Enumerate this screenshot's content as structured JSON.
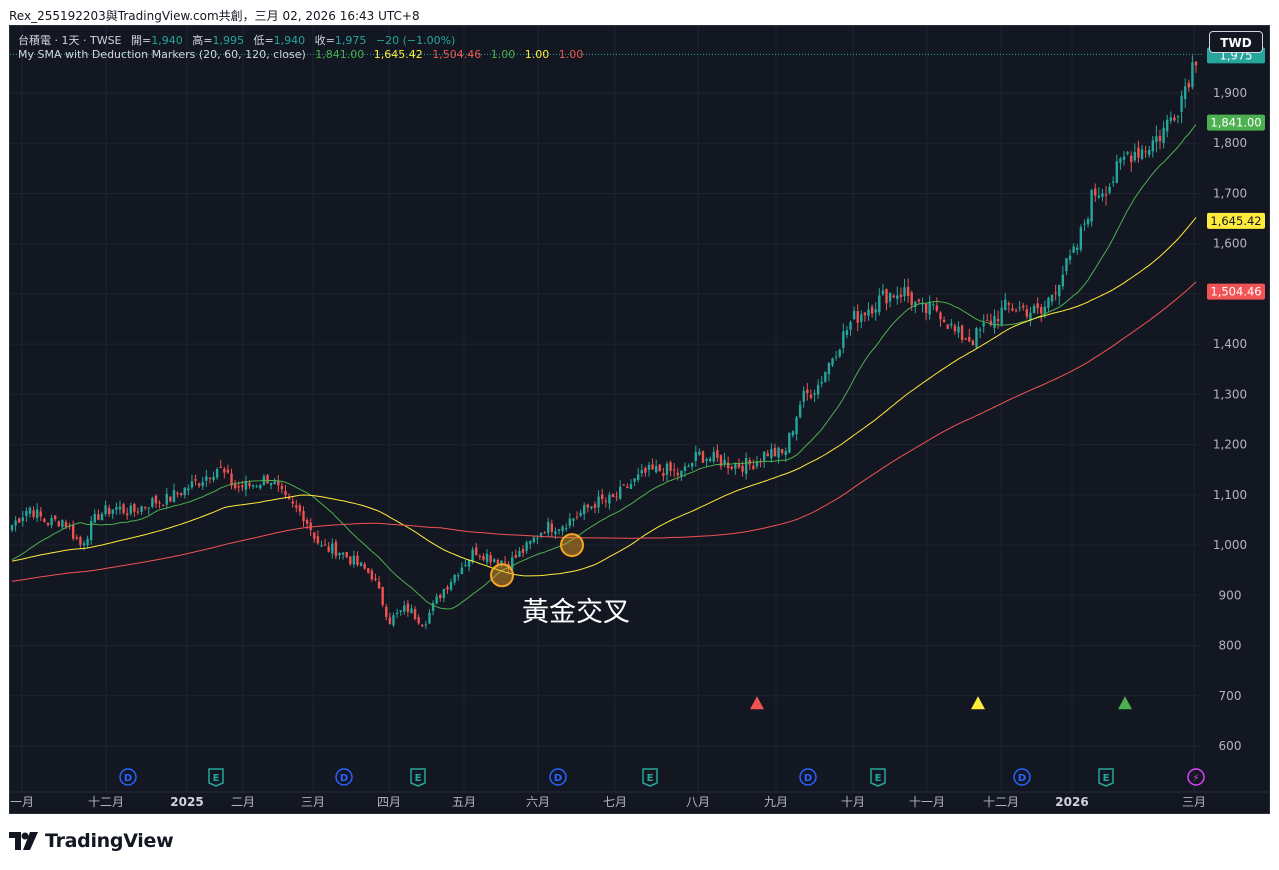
{
  "header": {
    "title": "Rex_255192203與TradingView.com共創，三月 02, 2026 16:43 UTC+8"
  },
  "legend": {
    "line1": {
      "symbol": "台積電 · 1天 · TWSE",
      "o_label": "開",
      "o": "1,940",
      "h_label": "高",
      "h": "1,995",
      "l_label": "低",
      "l": "1,940",
      "c_label": "收",
      "c": "1,975",
      "chg": "−20 (−1.00%)"
    },
    "line2": {
      "name": "My SMA with Deduction Markers (20, 60, 120, close)",
      "v1": "1,841.00",
      "v2": "1,645.42",
      "v3": "1,504.46",
      "v4": "1.00",
      "v5": "1.00",
      "v6": "1.00"
    }
  },
  "currency_button": "TWD",
  "price_labels": {
    "last": "1,975",
    "sma20": "1,841.00",
    "sma60": "1,645.42",
    "sma120": "1,504.46"
  },
  "annotation": "黃金交叉",
  "brand": "TradingView",
  "colors": {
    "bg": "#131722",
    "grid": "#1f2330",
    "up": "#26a69a",
    "down": "#ef5350",
    "sma20": "#4caf50",
    "sma60": "#ffeb3b",
    "sma120": "#f05454",
    "orange": "#f5a623"
  },
  "chart_data": {
    "type": "candlestick",
    "symbol": "台積電",
    "interval": "1天",
    "exchange": "TWSE",
    "y_ticks": [
      600,
      700,
      800,
      900,
      1000,
      1100,
      1200,
      1300,
      1400,
      1500,
      1600,
      1700,
      1800,
      1900
    ],
    "y_tick_labels": [
      "600",
      "700",
      "800",
      "900",
      "1,000",
      "1,100",
      "1,200",
      "1,300",
      "1,400",
      "1,500",
      "1,600",
      "1,700",
      "1,800",
      "1,900"
    ],
    "ylim": [
      570,
      2030
    ],
    "x_ticks": [
      "一月",
      "十二月",
      "2025",
      "二月",
      "三月",
      "四月",
      "五月",
      "六月",
      "七月",
      "八月",
      "九月",
      "十月",
      "十一月",
      "十二月",
      "2026",
      "三月"
    ],
    "close_series": [
      {
        "d": "2024-11-01",
        "c": 1040
      },
      {
        "d": "2024-11-08",
        "c": 1075
      },
      {
        "d": "2024-11-15",
        "c": 1045
      },
      {
        "d": "2024-11-22",
        "c": 1050
      },
      {
        "d": "2024-11-29",
        "c": 1000
      },
      {
        "d": "2024-12-06",
        "c": 1060
      },
      {
        "d": "2024-12-13",
        "c": 1075
      },
      {
        "d": "2024-12-20",
        "c": 1065
      },
      {
        "d": "2024-12-27",
        "c": 1085
      },
      {
        "d": "2025-01-03",
        "c": 1090
      },
      {
        "d": "2025-01-10",
        "c": 1110
      },
      {
        "d": "2025-01-17",
        "c": 1130
      },
      {
        "d": "2025-01-24",
        "c": 1155
      },
      {
        "d": "2025-02-03",
        "c": 1115
      },
      {
        "d": "2025-02-10",
        "c": 1120
      },
      {
        "d": "2025-02-17",
        "c": 1135
      },
      {
        "d": "2025-02-24",
        "c": 1085
      },
      {
        "d": "2025-03-03",
        "c": 1060
      },
      {
        "d": "2025-03-10",
        "c": 995
      },
      {
        "d": "2025-03-17",
        "c": 990
      },
      {
        "d": "2025-03-24",
        "c": 965
      },
      {
        "d": "2025-03-31",
        "c": 940
      },
      {
        "d": "2025-04-07",
        "c": 850
      },
      {
        "d": "2025-04-14",
        "c": 875
      },
      {
        "d": "2025-04-21",
        "c": 845
      },
      {
        "d": "2025-04-28",
        "c": 905
      },
      {
        "d": "2025-05-05",
        "c": 950
      },
      {
        "d": "2025-05-12",
        "c": 990
      },
      {
        "d": "2025-05-19",
        "c": 975
      },
      {
        "d": "2025-05-26",
        "c": 965
      },
      {
        "d": "2025-06-02",
        "c": 995
      },
      {
        "d": "2025-06-09",
        "c": 1035
      },
      {
        "d": "2025-06-16",
        "c": 1040
      },
      {
        "d": "2025-06-23",
        "c": 1060
      },
      {
        "d": "2025-06-30",
        "c": 1085
      },
      {
        "d": "2025-07-07",
        "c": 1090
      },
      {
        "d": "2025-07-14",
        "c": 1120
      },
      {
        "d": "2025-07-21",
        "c": 1145
      },
      {
        "d": "2025-07-28",
        "c": 1150
      },
      {
        "d": "2025-08-04",
        "c": 1140
      },
      {
        "d": "2025-08-11",
        "c": 1180
      },
      {
        "d": "2025-08-18",
        "c": 1170
      },
      {
        "d": "2025-08-25",
        "c": 1160
      },
      {
        "d": "2025-09-01",
        "c": 1160
      },
      {
        "d": "2025-09-08",
        "c": 1185
      },
      {
        "d": "2025-09-15",
        "c": 1180
      },
      {
        "d": "2025-09-22",
        "c": 1290
      },
      {
        "d": "2025-09-29",
        "c": 1320
      },
      {
        "d": "2025-10-06",
        "c": 1390
      },
      {
        "d": "2025-10-13",
        "c": 1450
      },
      {
        "d": "2025-10-20",
        "c": 1475
      },
      {
        "d": "2025-10-27",
        "c": 1500
      },
      {
        "d": "2025-11-03",
        "c": 1505
      },
      {
        "d": "2025-11-10",
        "c": 1465
      },
      {
        "d": "2025-11-17",
        "c": 1470
      },
      {
        "d": "2025-11-24",
        "c": 1420
      },
      {
        "d": "2025-12-01",
        "c": 1410
      },
      {
        "d": "2025-12-08",
        "c": 1445
      },
      {
        "d": "2025-12-15",
        "c": 1475
      },
      {
        "d": "2025-12-22",
        "c": 1470
      },
      {
        "d": "2025-12-29",
        "c": 1460
      },
      {
        "d": "2026-01-05",
        "c": 1530
      },
      {
        "d": "2026-01-12",
        "c": 1585
      },
      {
        "d": "2026-01-19",
        "c": 1700
      },
      {
        "d": "2026-01-26",
        "c": 1720
      },
      {
        "d": "2026-02-02",
        "c": 1780
      },
      {
        "d": "2026-02-09",
        "c": 1790
      },
      {
        "d": "2026-02-16",
        "c": 1820
      },
      {
        "d": "2026-02-23",
        "c": 1880
      },
      {
        "d": "2026-03-02",
        "c": 1975
      }
    ],
    "series": [
      {
        "name": "SMA 20",
        "color": "#4caf50",
        "last": 1841.0
      },
      {
        "name": "SMA 60",
        "color": "#ffeb3b",
        "last": 1645.42
      },
      {
        "name": "SMA 120",
        "color": "#f05454",
        "last": 1504.46
      }
    ],
    "markers": [
      {
        "type": "triangle-up",
        "color": "#ef5350",
        "x_label": "九月",
        "y": 683
      },
      {
        "type": "triangle-up",
        "color": "#ffeb3b",
        "x_label": "十二月",
        "y": 683
      },
      {
        "type": "triangle-up",
        "color": "#4caf50",
        "x_label": "2026",
        "y": 683
      }
    ],
    "circles": [
      {
        "x_label": "五月",
        "y": 940
      },
      {
        "x_label": "六月",
        "y": 1000
      }
    ],
    "events": [
      "D",
      "E",
      "D",
      "E",
      "D",
      "E",
      "D",
      "E",
      "D",
      "E",
      "⚡"
    ],
    "grid": true
  }
}
